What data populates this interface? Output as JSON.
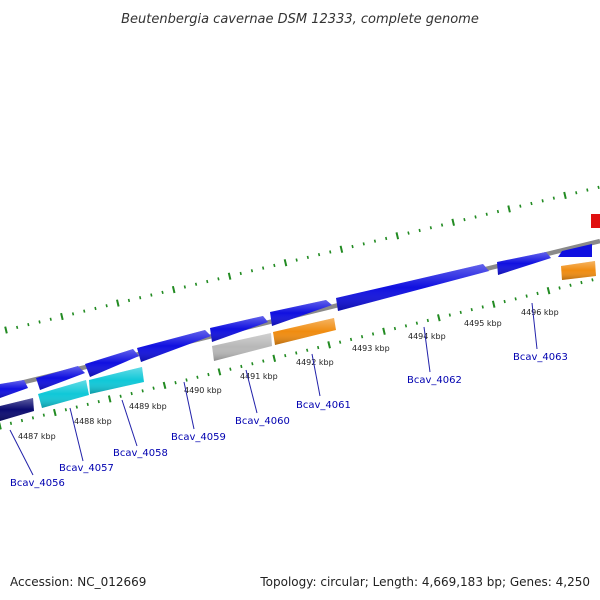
{
  "title": "Beutenbergia cavernae DSM 12333, complete genome",
  "footer": {
    "accession": "Accession: NC_012669",
    "summary": "Topology: circular; Length: 4,669,183 bp; Genes: 4,250"
  },
  "kbp_labels": [
    "4487 kbp",
    "4488 kbp",
    "4489 kbp",
    "4490 kbp",
    "4491 kbp",
    "4492 kbp",
    "4493 kbp",
    "4494 kbp",
    "4495 kbp",
    "4496 kbp"
  ],
  "genes": [
    {
      "name": "Bcav_4056",
      "color": "#0a0a70"
    },
    {
      "name": "Bcav_4057",
      "color": "#10c8d8"
    },
    {
      "name": "Bcav_4058",
      "color": "#10c8d8"
    },
    {
      "name": "Bcav_4059",
      "color": "#1010e0"
    },
    {
      "name": "Bcav_4060",
      "color": "#b8b8b8"
    },
    {
      "name": "Bcav_4061",
      "color": "#f08c10"
    },
    {
      "name": "Bcav_4062",
      "color": "#1010e0"
    },
    {
      "name": "Bcav_4063",
      "color": "#1010e0"
    }
  ],
  "colors": {
    "backbone": "#808080",
    "tick": "#228b22",
    "leader": "#2222aa",
    "forward_gene": "#1010e0",
    "unlabeled_orange": "#f08c10",
    "unlabeled_red": "#e01010"
  }
}
